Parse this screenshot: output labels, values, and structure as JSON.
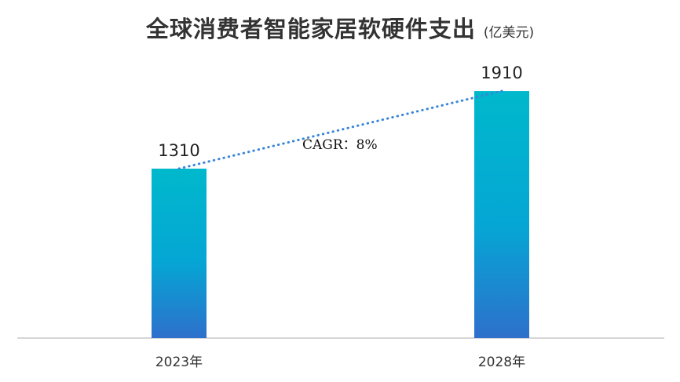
{
  "chart_data": {
    "type": "bar",
    "title": "全球消费者智能家居软硬件支出",
    "unit": "(亿美元)",
    "categories": [
      "2023年",
      "2028年"
    ],
    "values": [
      1310,
      1910
    ],
    "data_labels": [
      "1310",
      "1910"
    ],
    "ylim": [
      0,
      2250
    ],
    "grid": false,
    "legend": "none",
    "annotation": "CAGR：8%",
    "trend_line": {
      "style": "dotted",
      "connects": "bar-tops"
    },
    "colors": {
      "bar_top": "#00b8cc",
      "bar_mid": "#05a6d4",
      "bar_bottom": "#2e70cc",
      "trend": "#3a86d9",
      "axis": "#c8c8c8"
    }
  }
}
